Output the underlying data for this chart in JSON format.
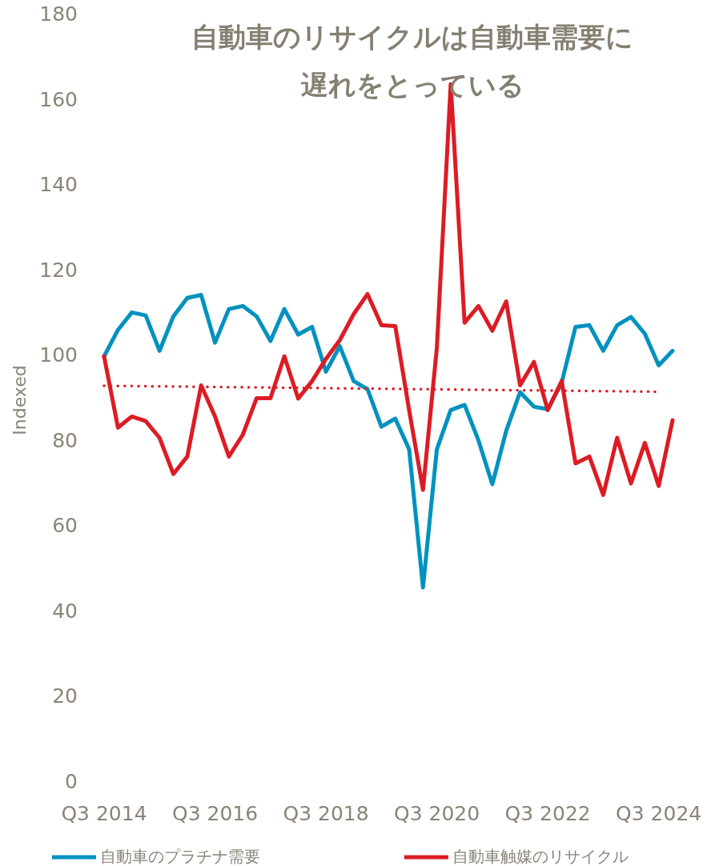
{
  "chart_data": {
    "type": "line",
    "title": "自動車のリサイクルは自動車需要に遅れをとっている",
    "ylabel": "Indexed",
    "categories": [
      "Q3 2014",
      null,
      null,
      null,
      null,
      null,
      null,
      null,
      "Q3 2016",
      null,
      null,
      null,
      null,
      null,
      null,
      null,
      "Q3 2018",
      null,
      null,
      null,
      null,
      null,
      null,
      null,
      "Q3 2020",
      null,
      null,
      null,
      null,
      null,
      null,
      null,
      "Q3 2022",
      null,
      null,
      null,
      null,
      null,
      null,
      null,
      "Q3 2024",
      null
    ],
    "ylim": [
      0,
      180
    ],
    "yticks": [
      0,
      20,
      40,
      60,
      80,
      100,
      120,
      140,
      160,
      180
    ],
    "legend": "bottom",
    "line_style": "solid",
    "marker": "none",
    "series": [
      {
        "name": "自動車のプラチナ需要",
        "color": "#0092bf",
        "values": [
          100,
          106.2,
          110.3,
          109.6,
          101.3,
          109.4,
          113.7,
          114.4,
          103.2,
          111.1,
          111.8,
          109.4,
          103.6,
          111.1,
          105.1,
          106.9,
          96.4,
          102.4,
          94.2,
          92.3,
          83.5,
          85.4,
          78.2,
          45.8,
          78.2,
          87.4,
          88.6,
          80.3,
          70.0,
          82.5,
          91.6,
          88.2,
          87.6,
          93.8,
          106.9,
          107.3,
          101.3,
          107.3,
          109.2,
          105.3,
          97.9,
          101.3
        ]
      },
      {
        "name": "自動車触媒のリサイクル",
        "color": "#dc1c24",
        "values": [
          100,
          83.3,
          85.9,
          84.8,
          80.9,
          72.4,
          76.5,
          93.2,
          85.9,
          76.5,
          81.6,
          90.2,
          90.2,
          100,
          90.1,
          94.2,
          99.4,
          103.8,
          109.9,
          114.6,
          107.3,
          107.1,
          87.4,
          68.7,
          102,
          163.8,
          107.9,
          111.8,
          106,
          112.9,
          93.2,
          98.7,
          87.4,
          94.2,
          74.9,
          76.5,
          67.5,
          80.9,
          70.2,
          79.7,
          69.6,
          85.0
        ]
      },
      {
        "type": "line",
        "color": "#dc1c24",
        "line_style": "dotted",
        "x": [
          "Q3 2014",
          "Q3 2024"
        ],
        "values": [
          93.1,
          91.7
        ]
      }
    ]
  }
}
